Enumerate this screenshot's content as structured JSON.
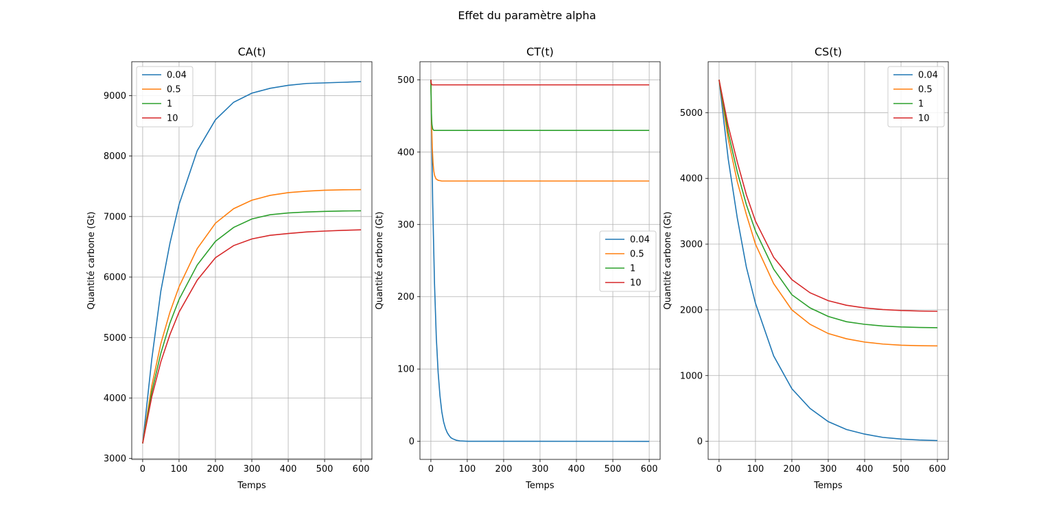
{
  "figure": {
    "suptitle": "Effet du paramètre alpha"
  },
  "chart_data": [
    {
      "type": "line",
      "title": "CA(t)",
      "xlabel": "Temps",
      "ylabel": "Quantité carbone (Gt)",
      "xlim": [
        -30,
        630
      ],
      "ylim": [
        2985,
        9560
      ],
      "xticks": [
        0,
        100,
        200,
        300,
        400,
        500,
        600
      ],
      "yticks": [
        3000,
        4000,
        5000,
        6000,
        7000,
        8000,
        9000
      ],
      "grid": true,
      "legend_position": "upper left",
      "series": [
        {
          "name": "0.04",
          "color": "#1f77b4",
          "x": [
            0,
            25,
            50,
            75,
            100,
            150,
            200,
            250,
            300,
            350,
            400,
            450,
            500,
            550,
            600
          ],
          "y": [
            3250,
            4640,
            5770,
            6560,
            7200,
            8090,
            8600,
            8890,
            9040,
            9120,
            9170,
            9200,
            9210,
            9220,
            9230
          ]
        },
        {
          "name": "0.5",
          "color": "#ff7f0e",
          "x": [
            0,
            25,
            50,
            75,
            100,
            150,
            200,
            250,
            300,
            350,
            400,
            450,
            500,
            550,
            600
          ],
          "y": [
            3250,
            4200,
            4900,
            5420,
            5840,
            6470,
            6890,
            7130,
            7270,
            7350,
            7395,
            7420,
            7435,
            7442,
            7445
          ]
        },
        {
          "name": "1",
          "color": "#2ca02c",
          "x": [
            0,
            25,
            50,
            75,
            100,
            150,
            200,
            250,
            300,
            350,
            400,
            450,
            500,
            550,
            600
          ],
          "y": [
            3250,
            4100,
            4740,
            5240,
            5630,
            6200,
            6590,
            6820,
            6960,
            7030,
            7060,
            7075,
            7085,
            7092,
            7095
          ]
        },
        {
          "name": "10",
          "color": "#d62728",
          "x": [
            0,
            25,
            50,
            75,
            100,
            150,
            200,
            250,
            300,
            350,
            400,
            450,
            500,
            550,
            600
          ],
          "y": [
            3250,
            4020,
            4600,
            5050,
            5420,
            5950,
            6320,
            6520,
            6630,
            6690,
            6720,
            6745,
            6760,
            6772,
            6780
          ]
        }
      ]
    },
    {
      "type": "line",
      "title": "CT(t)",
      "xlabel": "Temps",
      "ylabel": "Quantité carbone (Gt)",
      "xlim": [
        -30,
        630
      ],
      "ylim": [
        -25,
        525
      ],
      "xticks": [
        0,
        100,
        200,
        300,
        400,
        500,
        600
      ],
      "yticks": [
        0,
        100,
        200,
        300,
        400,
        500
      ],
      "grid": true,
      "legend_position": "center right",
      "series": [
        {
          "name": "0.04",
          "color": "#1f77b4",
          "x": [
            0,
            5,
            10,
            15,
            20,
            25,
            30,
            35,
            40,
            45,
            50,
            55,
            60,
            70,
            80,
            100,
            600
          ],
          "y": [
            500,
            330,
            218,
            143,
            95,
            63,
            41,
            27,
            18,
            12,
            8,
            5,
            3.5,
            1.5,
            0.6,
            0.1,
            0
          ]
        },
        {
          "name": "0.5",
          "color": "#ff7f0e",
          "x": [
            0,
            2,
            4,
            6,
            8,
            10,
            14,
            20,
            30,
            600
          ],
          "y": [
            500,
            438,
            404,
            385,
            374,
            368,
            363,
            361,
            360,
            360
          ]
        },
        {
          "name": "1",
          "color": "#2ca02c",
          "x": [
            0,
            1,
            2,
            3,
            5,
            8,
            12,
            600
          ],
          "y": [
            500,
            462,
            446,
            438,
            432,
            430,
            430,
            430
          ]
        },
        {
          "name": "10",
          "color": "#d62728",
          "x": [
            0,
            1,
            3,
            600
          ],
          "y": [
            500,
            495,
            493,
            493
          ]
        }
      ]
    },
    {
      "type": "line",
      "title": "CS(t)",
      "xlabel": "Temps",
      "ylabel": "Quantité carbone (Gt)",
      "xlim": [
        -30,
        630
      ],
      "ylim": [
        -275,
        5775
      ],
      "xticks": [
        0,
        100,
        200,
        300,
        400,
        500,
        600
      ],
      "yticks": [
        0,
        1000,
        2000,
        3000,
        4000,
        5000
      ],
      "grid": true,
      "legend_position": "upper right",
      "series": [
        {
          "name": "0.04",
          "color": "#1f77b4",
          "x": [
            0,
            25,
            50,
            75,
            100,
            150,
            200,
            250,
            300,
            350,
            400,
            450,
            500,
            550,
            600
          ],
          "y": [
            5500,
            4300,
            3400,
            2650,
            2100,
            1300,
            800,
            500,
            300,
            180,
            110,
            60,
            35,
            20,
            12
          ]
        },
        {
          "name": "0.5",
          "color": "#ff7f0e",
          "x": [
            0,
            25,
            50,
            75,
            100,
            150,
            200,
            250,
            300,
            350,
            400,
            450,
            500,
            550,
            600
          ],
          "y": [
            5500,
            4600,
            3950,
            3450,
            3000,
            2400,
            2000,
            1780,
            1640,
            1560,
            1510,
            1480,
            1462,
            1455,
            1452
          ]
        },
        {
          "name": "1",
          "color": "#2ca02c",
          "x": [
            0,
            25,
            50,
            75,
            100,
            150,
            200,
            250,
            300,
            350,
            400,
            450,
            500,
            550,
            600
          ],
          "y": [
            5500,
            4700,
            4100,
            3600,
            3200,
            2620,
            2230,
            2030,
            1900,
            1820,
            1780,
            1755,
            1740,
            1732,
            1728
          ]
        },
        {
          "name": "10",
          "color": "#d62728",
          "x": [
            0,
            25,
            50,
            75,
            100,
            150,
            200,
            250,
            300,
            350,
            400,
            450,
            500,
            550,
            600
          ],
          "y": [
            5500,
            4800,
            4250,
            3750,
            3350,
            2800,
            2460,
            2260,
            2140,
            2070,
            2030,
            2005,
            1990,
            1982,
            1978
          ]
        }
      ]
    }
  ]
}
